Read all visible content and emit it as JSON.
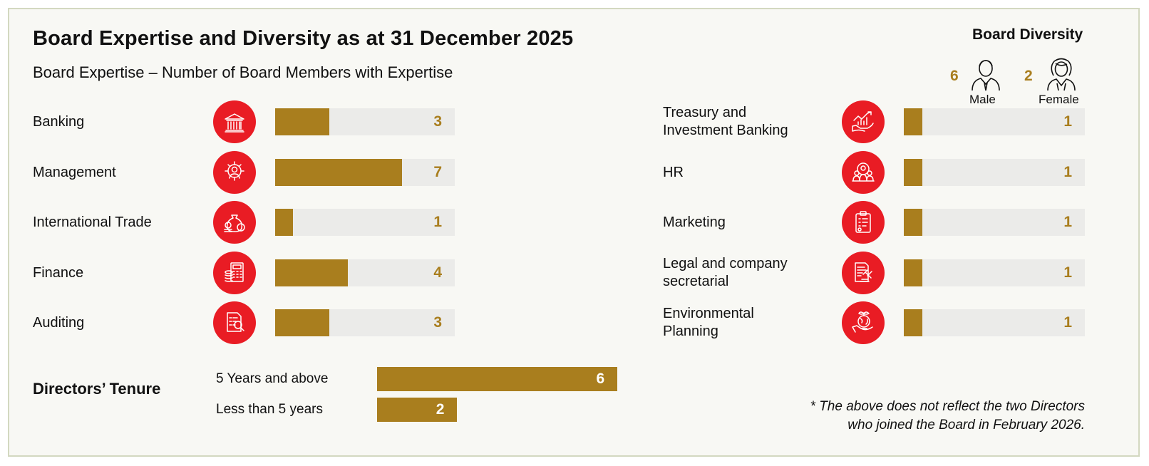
{
  "title": "Board Expertise and Diversity as at 31 December 2025",
  "subtitle": "Board Expertise – Number of Board Members with Expertise",
  "colors": {
    "bar": "#a97e1e",
    "track": "#ebebe9",
    "icon_bg": "#e91c24",
    "value_text": "#a97e1e"
  },
  "diversity": {
    "title": "Board Diversity",
    "male": {
      "count": "6",
      "label": "Male",
      "icon": "male-person-icon"
    },
    "female": {
      "count": "2",
      "label": "Female",
      "icon": "female-person-icon"
    }
  },
  "tenure": {
    "title": "Directors’ Tenure",
    "items": [
      {
        "label": "5 Years and above",
        "value": 6
      },
      {
        "label": "Less than 5 years",
        "value": 2
      }
    ]
  },
  "footnote": {
    "line1": "* The above does not reflect the two Directors",
    "line2": "who joined the Board in February 2026."
  },
  "chart_data": [
    {
      "type": "bar",
      "orientation": "horizontal",
      "title": "Board Expertise – Number of Board Members with Expertise",
      "xlim": [
        0,
        10
      ],
      "categories": [
        "Banking",
        "Management",
        "International Trade",
        "Finance",
        "Auditing",
        "Treasury and Investment Banking",
        "HR",
        "Marketing",
        "Legal and company secretarial",
        "Environmental Planning"
      ],
      "series": [
        {
          "name": "Board members",
          "values": [
            3,
            7,
            1,
            4,
            3,
            1,
            1,
            1,
            1,
            1
          ]
        }
      ],
      "icons": [
        "bank-icon",
        "management-gear-icon",
        "money-bag-icon",
        "calculator-coins-icon",
        "audit-document-icon",
        "investment-growth-icon",
        "hr-team-icon",
        "marketing-clipboard-icon",
        "legal-gavel-icon",
        "environment-globe-icon"
      ],
      "label_lines": [
        [
          "Banking"
        ],
        [
          "Management"
        ],
        [
          "International Trade"
        ],
        [
          "Finance"
        ],
        [
          "Auditing"
        ],
        [
          "Treasury and",
          "Investment Banking"
        ],
        [
          "HR"
        ],
        [
          "Marketing"
        ],
        [
          "Legal and company",
          "secretarial"
        ],
        [
          "Environmental",
          "Planning"
        ]
      ]
    },
    {
      "type": "bar",
      "orientation": "horizontal",
      "title": "Directors’ Tenure",
      "xlim": [
        0,
        6
      ],
      "categories": [
        "5 Years and above",
        "Less than 5 years"
      ],
      "values": [
        6,
        2
      ]
    },
    {
      "type": "table",
      "title": "Board Diversity",
      "categories": [
        "Male",
        "Female"
      ],
      "values": [
        6,
        2
      ]
    }
  ]
}
